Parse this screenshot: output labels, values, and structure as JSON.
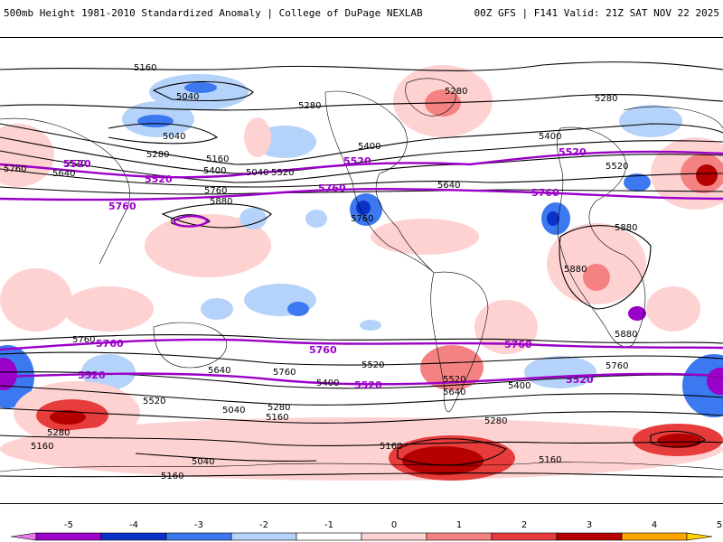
{
  "header": {
    "title_left": "500mb Height 1981-2010 Standardized Anomaly | College of DuPage NEXLAB",
    "title_right": "00Z GFS | F141 Valid: 21Z SAT NOV 22 2025"
  },
  "map": {
    "black_contour_labels": [
      "5160",
      "5040",
      "5040",
      "5280",
      "5160",
      "5280",
      "5400",
      "5640",
      "5520",
      "5760",
      "5280",
      "5400",
      "5040",
      "5520",
      "5760",
      "5880",
      "5760",
      "5640",
      "5280",
      "5520",
      "5400",
      "5880",
      "5880",
      "5880",
      "5760",
      "5640",
      "5760",
      "5520",
      "5400",
      "5520",
      "5640",
      "5760",
      "5400",
      "5160",
      "5280",
      "5520",
      "5040",
      "5160",
      "5280",
      "5040",
      "5160",
      "5160",
      "5160",
      "5280",
      "5160"
    ],
    "purple_contour_labels": [
      "5520",
      "5520",
      "5520",
      "5520",
      "5760",
      "5760",
      "5760",
      "5760",
      "5760",
      "5760",
      "5520",
      "5520",
      "5520"
    ]
  },
  "colorbar": {
    "ticks": [
      "-5",
      "-4",
      "-3",
      "-2",
      "-1",
      "0",
      "1",
      "2",
      "3",
      "4",
      "5"
    ],
    "colors": [
      "#e879e8",
      "#9b00c8",
      "#0a32c8",
      "#3c78f0",
      "#b4d2fa",
      "#ffffff",
      "#ffd2d2",
      "#f58282",
      "#e63c3c",
      "#b40000",
      "#ffa500",
      "#ffd200"
    ]
  }
}
